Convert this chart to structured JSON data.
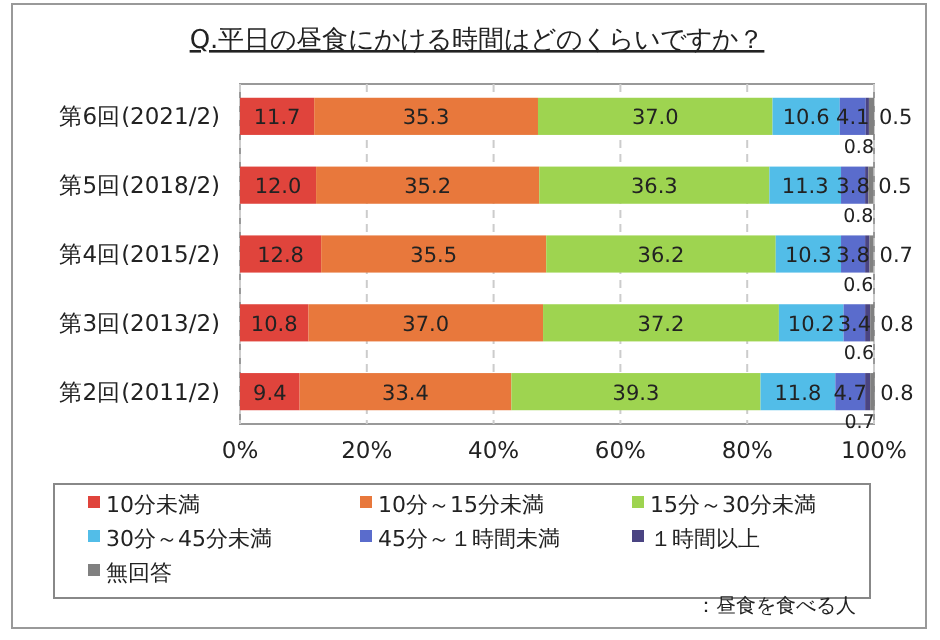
{
  "chart_data": {
    "type": "bar",
    "orientation": "horizontal",
    "stacked": true,
    "title": "Q.平日の昼食にかける時間はどのくらいですか？",
    "categories": [
      "第6回(2021/2)",
      "第5回(2018/2)",
      "第4回(2015/2)",
      "第3回(2013/2)",
      "第2回(2011/2)"
    ],
    "series": [
      {
        "name": "10分未満",
        "color": "#e0443c",
        "values": [
          11.7,
          12.0,
          12.8,
          10.8,
          9.4
        ],
        "value_labels": [
          "11.7",
          "12.0",
          "12.8",
          "10.8",
          "9.4"
        ]
      },
      {
        "name": "10分～15分未満",
        "color": "#e8783c",
        "values": [
          35.3,
          35.2,
          35.5,
          37.0,
          33.4
        ],
        "value_labels": [
          "35.3",
          "35.2",
          "35.5",
          "37.0",
          "33.4"
        ]
      },
      {
        "name": "15分～30分未満",
        "color": "#9ed450",
        "values": [
          37.0,
          36.3,
          36.2,
          37.2,
          39.3
        ],
        "value_labels": [
          "37.0",
          "36.3",
          "36.2",
          "37.2",
          "39.3"
        ]
      },
      {
        "name": "30分～45分未満",
        "color": "#52bde8",
        "values": [
          10.6,
          11.3,
          10.3,
          10.2,
          11.8
        ],
        "value_labels": [
          "10.6",
          "11.3",
          "10.3",
          "10.2",
          "11.8"
        ]
      },
      {
        "name": "45分～１時間未満",
        "color": "#5a6ccc",
        "values": [
          4.1,
          3.8,
          3.8,
          3.4,
          4.7
        ],
        "value_labels": [
          "4.1",
          "3.8",
          "3.8",
          "3.4",
          "4.7"
        ]
      },
      {
        "name": "１時間以上",
        "color": "#4a4482",
        "values": [
          0.5,
          0.5,
          0.7,
          0.8,
          0.8
        ],
        "value_labels": [
          "0.5",
          "0.5",
          "0.7",
          "0.8",
          "0.8"
        ]
      },
      {
        "name": "無回答",
        "color": "#808080",
        "values": [
          0.8,
          0.8,
          0.6,
          0.6,
          0.7
        ],
        "value_labels": [
          "0.8",
          "0.8",
          "0.6",
          "0.6",
          "0.7"
        ]
      }
    ],
    "xlim": [
      0,
      100
    ],
    "xticks": [
      {
        "value": 0,
        "label": "0%"
      },
      {
        "value": 20,
        "label": "20%"
      },
      {
        "value": 40,
        "label": "40%"
      },
      {
        "value": 60,
        "label": "60%"
      },
      {
        "value": 80,
        "label": "80%"
      },
      {
        "value": 100,
        "label": "100%"
      }
    ],
    "grid": "x",
    "legend": "bottom",
    "annotations": [
      "：昼食を食べる人"
    ]
  }
}
